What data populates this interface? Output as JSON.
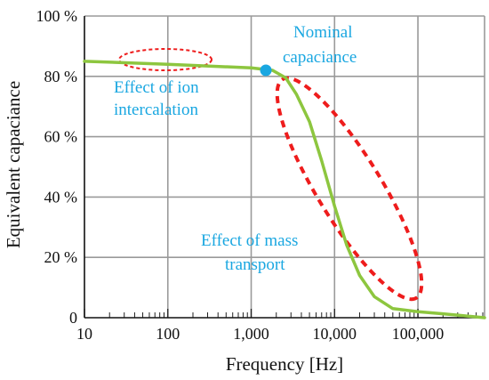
{
  "chart_data": {
    "type": "line",
    "title": "",
    "xlabel": "Frequency [Hz]",
    "ylabel": "Equivalent capaciance",
    "x_scale": "log",
    "xlim": [
      10,
      630000
    ],
    "ylim": [
      0,
      100
    ],
    "grid": true,
    "x_major_ticks": [
      {
        "value": 10,
        "label": "10"
      },
      {
        "value": 100,
        "label": "100"
      },
      {
        "value": 1000,
        "label": "1,000"
      },
      {
        "value": 10000,
        "label": "10,000"
      },
      {
        "value": 100000,
        "label": "100,000"
      }
    ],
    "y_ticks": [
      {
        "value": 0,
        "label": "0"
      },
      {
        "value": 20,
        "label": "20 %"
      },
      {
        "value": 40,
        "label": "40 %"
      },
      {
        "value": 60,
        "label": "60 %"
      },
      {
        "value": 80,
        "label": "80 %"
      },
      {
        "value": 100,
        "label": "100 %"
      }
    ],
    "series": [
      {
        "color": "#8dc63f",
        "points": [
          [
            10,
            85
          ],
          [
            100,
            84
          ],
          [
            1000,
            82.8
          ],
          [
            1800,
            82
          ],
          [
            2600,
            79.5
          ],
          [
            3500,
            74
          ],
          [
            5000,
            65
          ],
          [
            7000,
            52
          ],
          [
            10000,
            37
          ],
          [
            14000,
            24
          ],
          [
            20000,
            14
          ],
          [
            30000,
            7
          ],
          [
            50000,
            3
          ],
          [
            100000,
            2
          ],
          [
            200000,
            1.3
          ],
          [
            630000,
            0
          ]
        ]
      }
    ],
    "nominal_point": {
      "x": 1500,
      "y": 82,
      "color": "#1aa7e1"
    },
    "annotations": [
      {
        "text": "Nominal",
        "color": "#1aa7e1"
      },
      {
        "text": "capaciance",
        "color": "#1aa7e1"
      },
      {
        "text": "Effect of ion",
        "color": "#1aa7e1"
      },
      {
        "text": "intercalation",
        "color": "#1aa7e1"
      },
      {
        "text": "Effect of mass",
        "color": "#1aa7e1"
      },
      {
        "text": "transport",
        "color": "#1aa7e1"
      }
    ],
    "highlight_ellipse_color": "#ee1c1c"
  }
}
